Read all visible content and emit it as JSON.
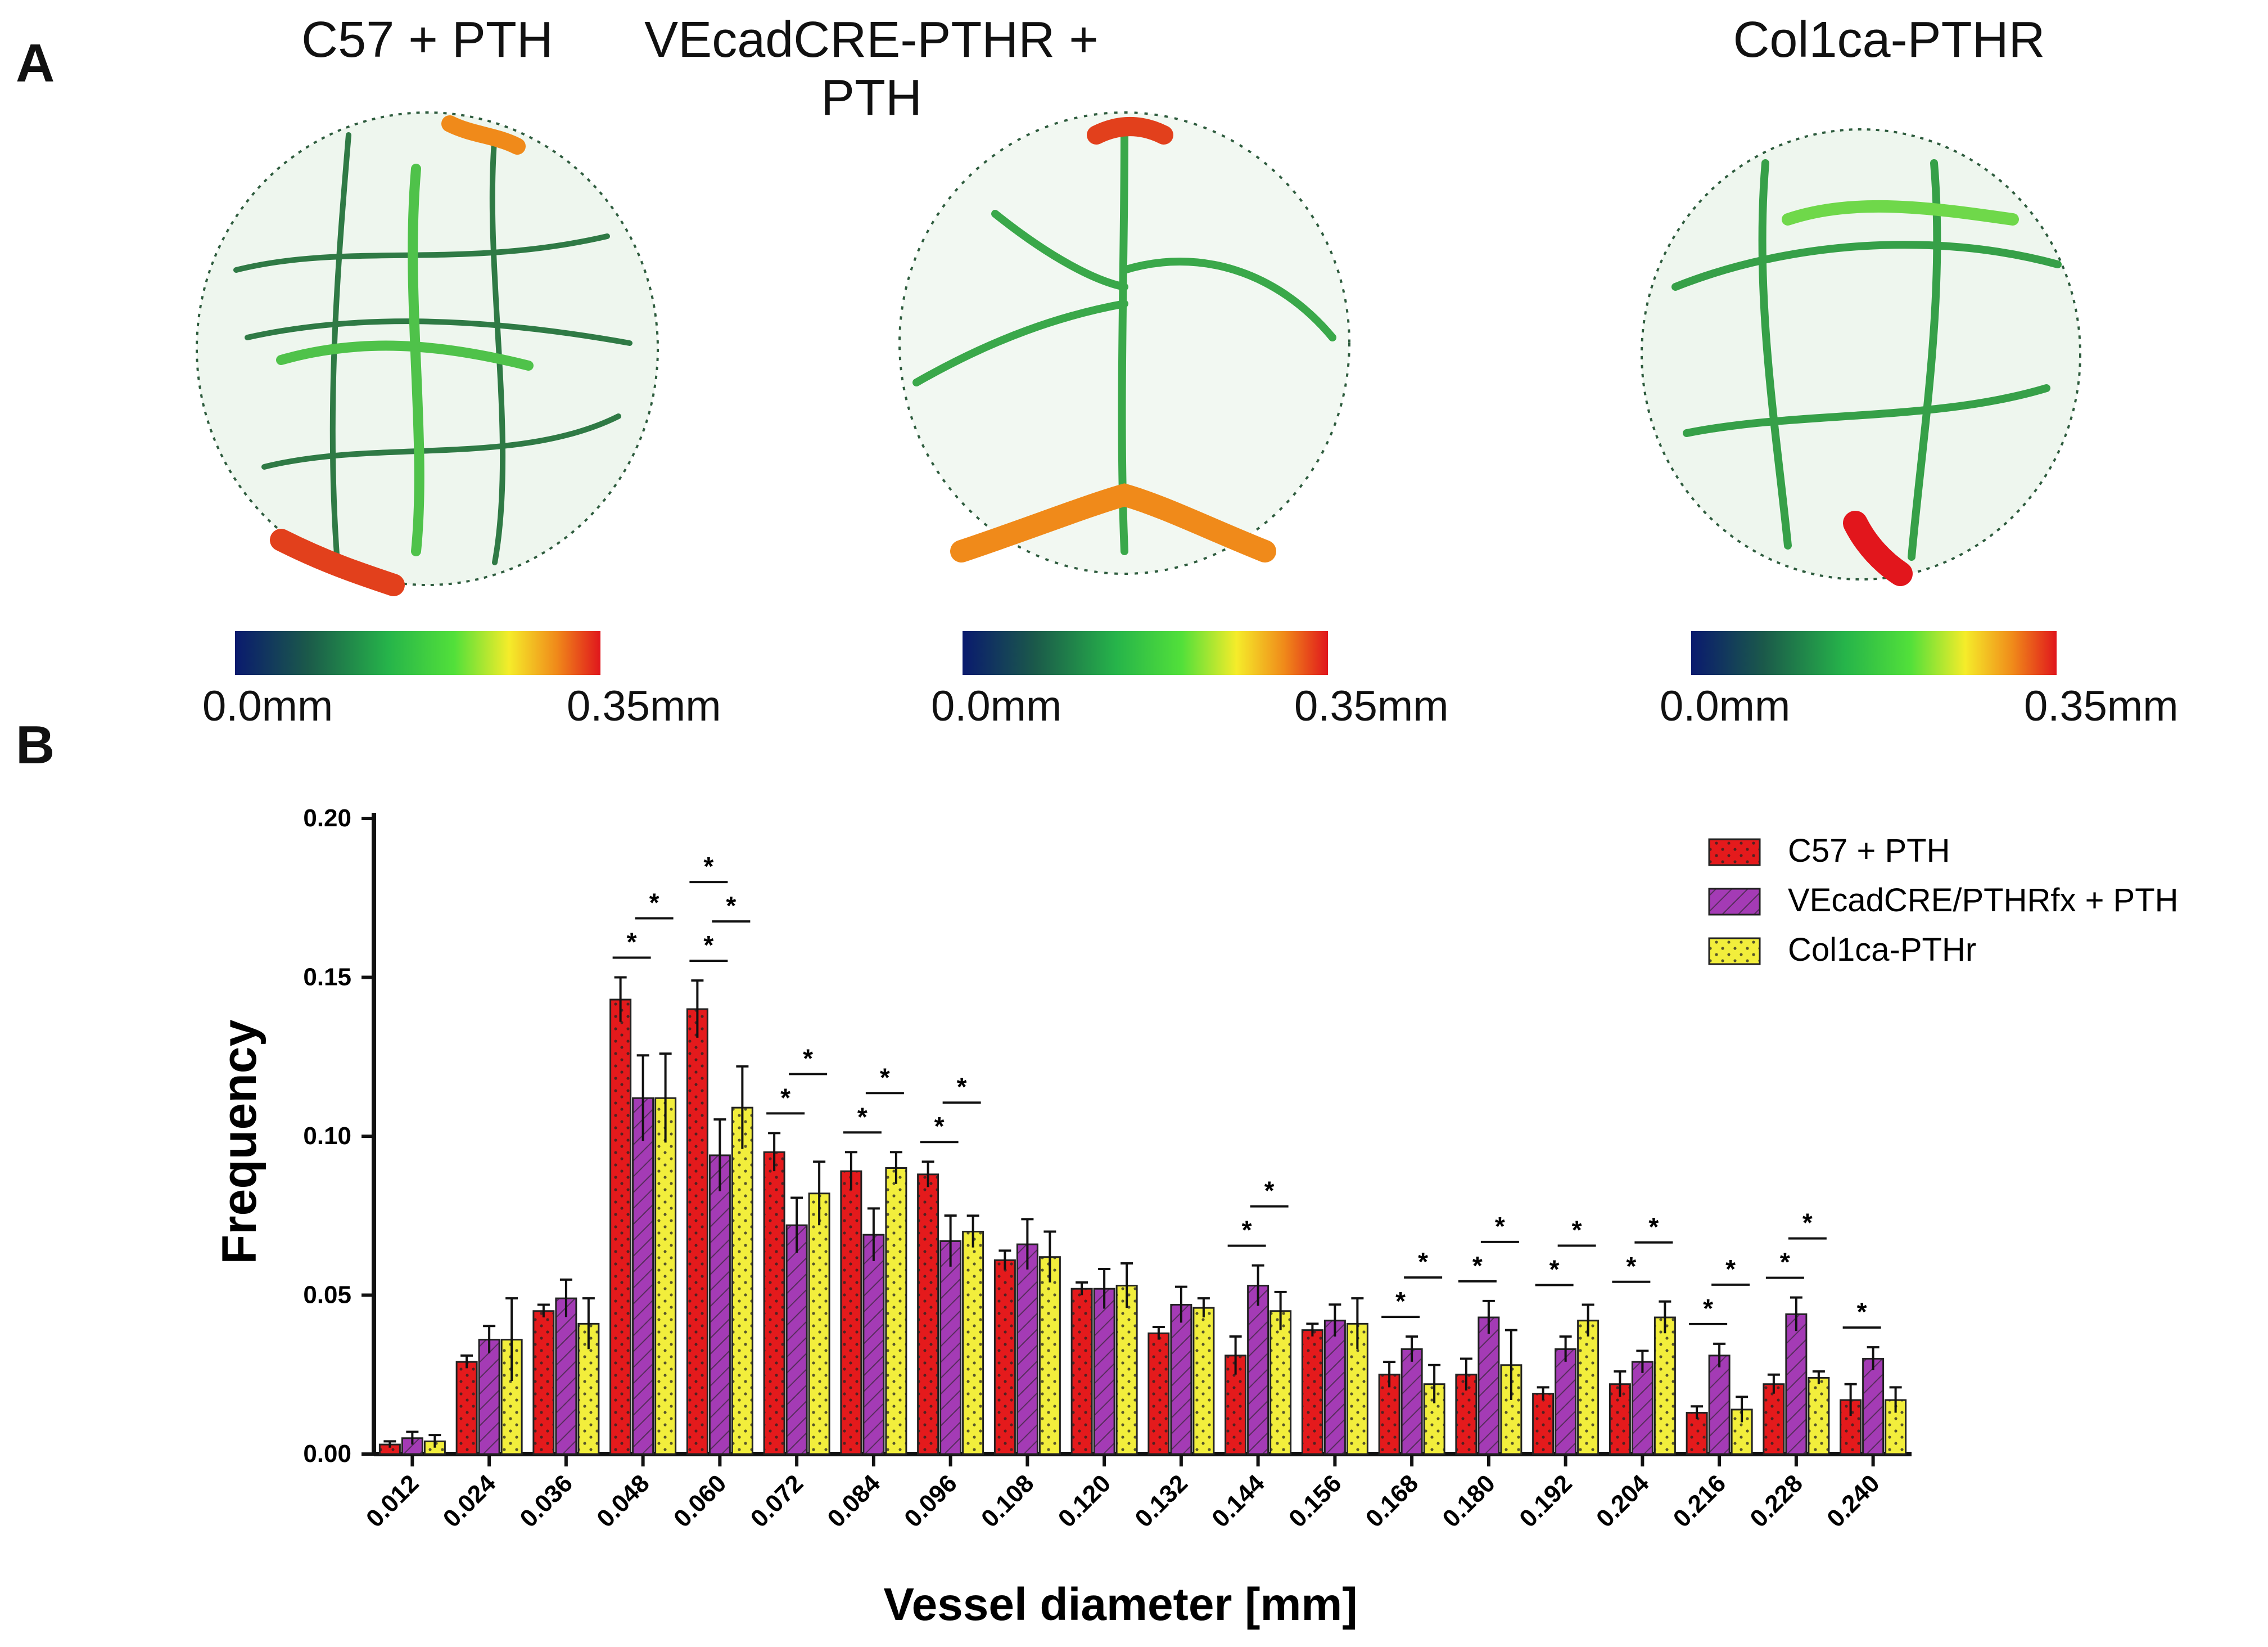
{
  "panel_a": {
    "letter": "A",
    "renders": [
      {
        "title": "C57 + PTH",
        "scale_min": "0.0mm",
        "scale_max": "0.35mm"
      },
      {
        "title": "VEcadCRE-PTHR + PTH",
        "scale_min": "0.0mm",
        "scale_max": "0.35mm"
      },
      {
        "title": "Col1ca-PTHR",
        "scale_min": "0.0mm",
        "scale_max": "0.35mm"
      }
    ],
    "colormap": [
      "#0a1a6e",
      "#1b5a4a",
      "#26b44a",
      "#52e03a",
      "#f5ec2a",
      "#f08a1a",
      "#e0161c"
    ]
  },
  "panel_b": {
    "letter": "B"
  },
  "chart_data": {
    "type": "bar",
    "xlabel": "Vessel diameter [mm]",
    "ylabel": "Frequency",
    "ylim": [
      0,
      0.2
    ],
    "yticks": [
      "0.00",
      "0.05",
      "0.10",
      "0.15",
      "0.20"
    ],
    "categories": [
      "0.012",
      "0.024",
      "0.036",
      "0.048",
      "0.060",
      "0.072",
      "0.084",
      "0.096",
      "0.108",
      "0.120",
      "0.132",
      "0.144",
      "0.156",
      "0.168",
      "0.180",
      "0.192",
      "0.204",
      "0.216",
      "0.228",
      "0.240"
    ],
    "legend_position": "top-right",
    "series": [
      {
        "name": "C57 + PTH",
        "color": "#e41a1c",
        "pattern": "dots",
        "values": [
          0.003,
          0.029,
          0.045,
          0.143,
          0.14,
          0.095,
          0.089,
          0.088,
          0.061,
          0.052,
          0.038,
          0.031,
          0.039,
          0.025,
          0.025,
          0.019,
          0.022,
          0.013,
          0.022,
          0.017
        ],
        "errors": [
          0.001,
          0.002,
          0.002,
          0.007,
          0.009,
          0.006,
          0.006,
          0.004,
          0.003,
          0.002,
          0.002,
          0.006,
          0.002,
          0.004,
          0.005,
          0.002,
          0.004,
          0.002,
          0.003,
          0.005
        ]
      },
      {
        "name": "VEcadCRE/PTHRfx + PTH",
        "color": "#a43bb5",
        "pattern": "hatch",
        "values": [
          0.005,
          0.036,
          0.049,
          0.112,
          0.094,
          0.072,
          0.069,
          0.067,
          0.066,
          0.052,
          0.047,
          0.053,
          0.042,
          0.033,
          0.043,
          0.033,
          0.029,
          0.031,
          0.044,
          0.03
        ]
      },
      {
        "name": "Col1ca-PTHr",
        "color": "#f2ee3c",
        "pattern": "dots",
        "values": [
          0.004,
          0.036,
          0.041,
          0.112,
          0.109,
          0.082,
          0.09,
          0.07,
          0.062,
          0.053,
          0.046,
          0.045,
          0.041,
          0.022,
          0.028,
          0.042,
          0.043,
          0.014,
          0.024,
          0.017
        ],
        "errors": [
          0.002,
          0.013,
          0.008,
          0.014,
          0.013,
          0.01,
          0.005,
          0.005,
          0.008,
          0.007,
          0.003,
          0.006,
          0.008,
          0.006,
          0.011,
          0.005,
          0.005,
          0.004,
          0.002,
          0.004
        ]
      }
    ],
    "significance": [
      {
        "category": "0.048",
        "marks": [
          "*",
          "*"
        ]
      },
      {
        "category": "0.060",
        "marks": [
          "*",
          "*",
          "*"
        ]
      },
      {
        "category": "0.072",
        "marks": [
          "*",
          "*"
        ]
      },
      {
        "category": "0.084",
        "marks": [
          "*",
          "*"
        ]
      },
      {
        "category": "0.096",
        "marks": [
          "*",
          "*"
        ]
      },
      {
        "category": "0.144",
        "marks": [
          "*",
          "*"
        ]
      },
      {
        "category": "0.168",
        "marks": [
          "*",
          "*"
        ]
      },
      {
        "category": "0.180",
        "marks": [
          "*",
          "*"
        ]
      },
      {
        "category": "0.192",
        "marks": [
          "*",
          "*"
        ]
      },
      {
        "category": "0.204",
        "marks": [
          "*",
          "*"
        ]
      },
      {
        "category": "0.216",
        "marks": [
          "*",
          "*"
        ]
      },
      {
        "category": "0.228",
        "marks": [
          "*",
          "*"
        ]
      },
      {
        "category": "0.240",
        "marks": [
          "*"
        ]
      }
    ]
  }
}
